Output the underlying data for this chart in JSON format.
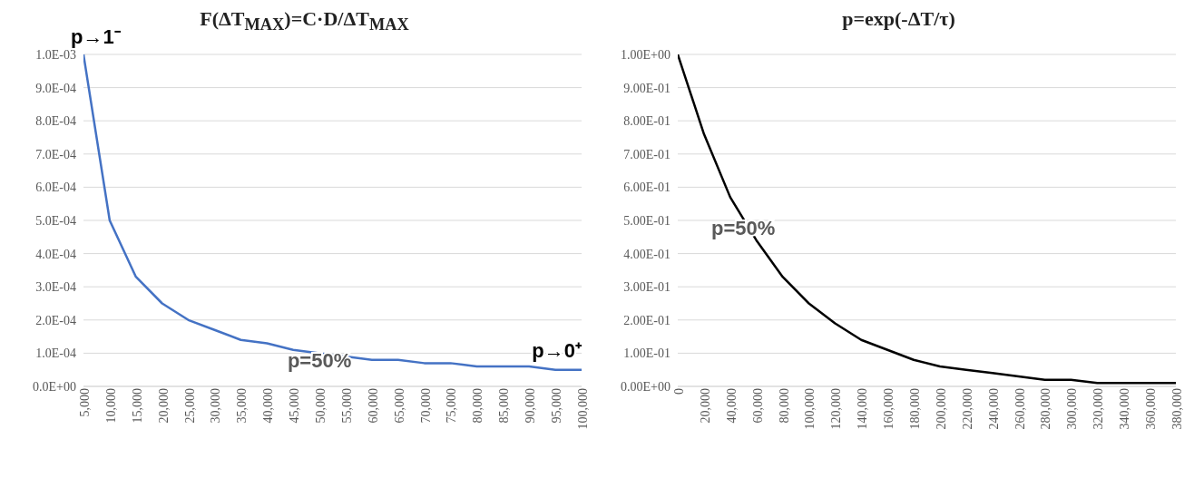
{
  "chart_data": [
    {
      "type": "line",
      "title": "F(ΔT$_{MAX}$)=C·D/ΔT$_{MAX}$",
      "x": [
        5000,
        10000,
        15000,
        20000,
        25000,
        30000,
        35000,
        40000,
        45000,
        50000,
        55000,
        60000,
        65000,
        70000,
        75000,
        80000,
        85000,
        90000,
        95000,
        100000
      ],
      "series": [
        {
          "color": "#4472c4",
          "values": [
            0.001,
            0.0005,
            0.00033,
            0.00025,
            0.0002,
            0.00017,
            0.00014,
            0.00013,
            0.00011,
            0.0001,
            9e-05,
            8e-05,
            8e-05,
            7e-05,
            7e-05,
            6e-05,
            6e-05,
            6e-05,
            5e-05,
            5e-05
          ]
        }
      ],
      "xlim": [
        5000,
        100000
      ],
      "xticks": [
        {
          "value": 5000,
          "label": "5,000"
        },
        {
          "value": 10000,
          "label": "10,000"
        },
        {
          "value": 15000,
          "label": "15,000"
        },
        {
          "value": 20000,
          "label": "20,000"
        },
        {
          "value": 25000,
          "label": "25,000"
        },
        {
          "value": 30000,
          "label": "30,000"
        },
        {
          "value": 35000,
          "label": "35,000"
        },
        {
          "value": 40000,
          "label": "40,000"
        },
        {
          "value": 45000,
          "label": "45,000"
        },
        {
          "value": 50000,
          "label": "50,000"
        },
        {
          "value": 55000,
          "label": "55,000"
        },
        {
          "value": 60000,
          "label": "60,000"
        },
        {
          "value": 65000,
          "label": "65,000"
        },
        {
          "value": 70000,
          "label": "70,000"
        },
        {
          "value": 75000,
          "label": "75,000"
        },
        {
          "value": 80000,
          "label": "80,000"
        },
        {
          "value": 85000,
          "label": "85,000"
        },
        {
          "value": 90000,
          "label": "90,000"
        },
        {
          "value": 95000,
          "label": "95,000"
        },
        {
          "value": 100000,
          "label": "100,000"
        }
      ],
      "ylim": [
        0,
        0.001
      ],
      "yticks": [
        {
          "value": 0,
          "label": "0.0E+00"
        },
        {
          "value": 0.0001,
          "label": "1.0E-04"
        },
        {
          "value": 0.0002,
          "label": "2.0E-04"
        },
        {
          "value": 0.0003,
          "label": "3.0E-04"
        },
        {
          "value": 0.0004,
          "label": "4.0E-04"
        },
        {
          "value": 0.0005,
          "label": "5.0E-04"
        },
        {
          "value": 0.0006,
          "label": "6.0E-04"
        },
        {
          "value": 0.0007,
          "label": "7.0E-04"
        },
        {
          "value": 0.0008,
          "label": "8.0E-04"
        },
        {
          "value": 0.0009,
          "label": "9.0E-04"
        },
        {
          "value": 0.001,
          "label": "1.0E-03"
        }
      ],
      "grid": "y",
      "marker": "none",
      "line_style": "solid",
      "legend": false,
      "annotations": [
        {
          "text": "p→1⁻",
          "x": 5000,
          "y": 0.001
        },
        {
          "text": "p=50%",
          "x": 50000,
          "y": 0.0001
        },
        {
          "text": "p→0⁺",
          "x": 100000,
          "y": 5e-05
        }
      ]
    },
    {
      "type": "line",
      "title": "p=exp(-ΔT/τ)",
      "x": [
        0,
        20000,
        40000,
        60000,
        80000,
        100000,
        120000,
        140000,
        160000,
        180000,
        200000,
        220000,
        240000,
        260000,
        280000,
        300000,
        320000,
        340000,
        360000,
        380000
      ],
      "series": [
        {
          "color": "#000000",
          "values": [
            1,
            0.76,
            0.57,
            0.44,
            0.33,
            0.25,
            0.19,
            0.14,
            0.11,
            0.08,
            0.06,
            0.05,
            0.04,
            0.03,
            0.02,
            0.02,
            0.01,
            0.01,
            0.01,
            0.01
          ]
        }
      ],
      "xlim": [
        0,
        380000
      ],
      "xticks": [
        0,
        {
          "value": 20000,
          "label": "20,000"
        },
        {
          "value": 40000,
          "label": "40,000"
        },
        {
          "value": 60000,
          "label": "60,000"
        },
        {
          "value": 80000,
          "label": "80,000"
        },
        {
          "value": 100000,
          "label": "100,000"
        },
        {
          "value": 120000,
          "label": "120,000"
        },
        {
          "value": 140000,
          "label": "140,000"
        },
        {
          "value": 160000,
          "label": "160,000"
        },
        {
          "value": 180000,
          "label": "180,000"
        },
        {
          "value": 200000,
          "label": "200,000"
        },
        {
          "value": 220000,
          "label": "220,000"
        },
        {
          "value": 240000,
          "label": "240,000"
        },
        {
          "value": 260000,
          "label": "260,000"
        },
        {
          "value": 280000,
          "label": "280,000"
        },
        {
          "value": 300000,
          "label": "300,000"
        },
        {
          "value": 320000,
          "label": "320,000"
        },
        {
          "value": 340000,
          "label": "340,000"
        },
        {
          "value": 360000,
          "label": "360,000"
        },
        {
          "value": 380000,
          "label": "380,000"
        }
      ],
      "ylim": [
        0,
        1
      ],
      "yticks": [
        {
          "value": 0,
          "label": "0.00E+00"
        },
        {
          "value": 0.1,
          "label": "1.00E-01"
        },
        {
          "value": 0.2,
          "label": "2.00E-01"
        },
        {
          "value": 0.3,
          "label": "3.00E-01"
        },
        {
          "value": 0.4,
          "label": "4.00E-01"
        },
        {
          "value": 0.5,
          "label": "5.00E-01"
        },
        {
          "value": 0.6,
          "label": "6.00E-01"
        },
        {
          "value": 0.7,
          "label": "7.00E-01"
        },
        {
          "value": 0.8,
          "label": "8.00E-01"
        },
        {
          "value": 0.9,
          "label": "9.00E-01"
        },
        {
          "value": 1,
          "label": "1.00E+00"
        }
      ],
      "grid": "y",
      "marker": "none",
      "line_style": "solid",
      "legend": false,
      "annotations": [
        {
          "text": "p=50%",
          "x": 50000,
          "y": 0.5
        }
      ]
    }
  ]
}
